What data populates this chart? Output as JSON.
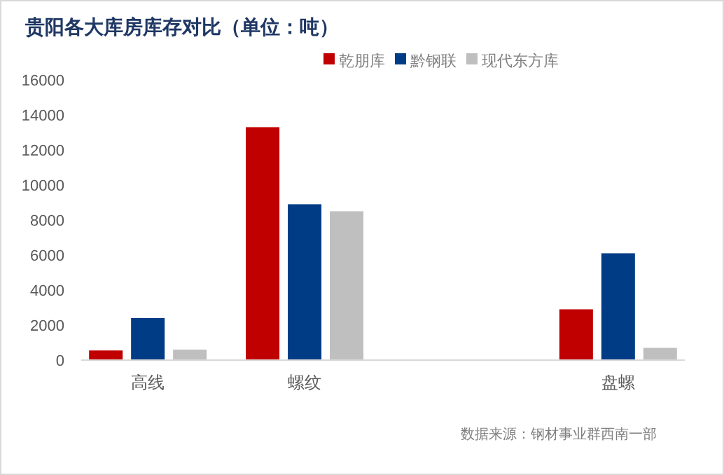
{
  "chart_data": {
    "type": "bar",
    "title": "贵阳各大库房库存对比（单位：吨）",
    "categories": [
      "高线",
      "螺纹",
      null,
      "盘螺"
    ],
    "series": [
      {
        "name": "乾朋库",
        "color": "#c00000",
        "values": [
          550,
          13300,
          null,
          2900
        ]
      },
      {
        "name": "黔钢联",
        "color": "#003b85",
        "values": [
          2400,
          8900,
          null,
          6100
        ]
      },
      {
        "name": "现代东方库",
        "color": "#bfbfbf",
        "values": [
          600,
          8500,
          null,
          700
        ]
      }
    ],
    "ylim": [
      0,
      16000
    ],
    "yticks": [
      0,
      2000,
      4000,
      6000,
      8000,
      10000,
      12000,
      14000,
      16000
    ],
    "grid": false,
    "legend": "top",
    "annotations": [
      "数据来源：钢材事业群西南一部"
    ]
  }
}
